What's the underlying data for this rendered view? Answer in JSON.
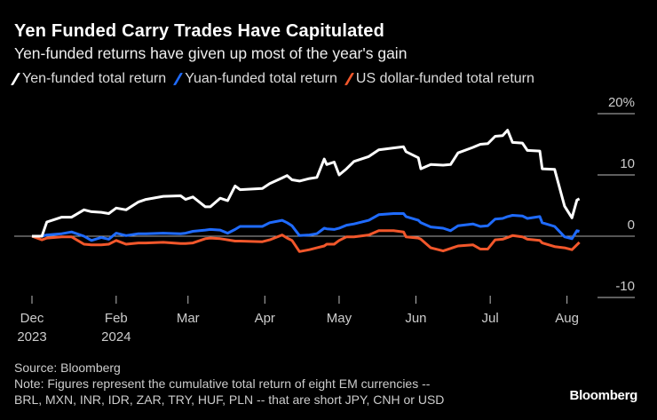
{
  "chart_data": {
    "type": "line",
    "title": "Yen Funded Carry Trades Have Capitulated",
    "subtitle": "Yen-funded returns have given up most of the year's gain",
    "xlabel": "",
    "ylabel": "",
    "ylim": [
      -10,
      20
    ],
    "y_ticks": [
      {
        "value": 20,
        "label": "20%"
      },
      {
        "value": 10,
        "label": "10"
      },
      {
        "value": 0,
        "label": "0"
      },
      {
        "value": -10,
        "label": "-10"
      }
    ],
    "y_axis_side": "right",
    "x_ticks": [
      {
        "date": "2023-12-29",
        "label": "Dec",
        "sublabel": "2023"
      },
      {
        "date": "2024-02-01",
        "label": "Feb",
        "sublabel": "2024"
      },
      {
        "date": "2024-03-01",
        "label": "Mar",
        "sublabel": ""
      },
      {
        "date": "2024-04-01",
        "label": "Apr",
        "sublabel": ""
      },
      {
        "date": "2024-05-01",
        "label": "May",
        "sublabel": ""
      },
      {
        "date": "2024-06-01",
        "label": "Jun",
        "sublabel": ""
      },
      {
        "date": "2024-07-01",
        "label": "Jul",
        "sublabel": ""
      },
      {
        "date": "2024-08-01",
        "label": "Aug",
        "sublabel": ""
      }
    ],
    "grid": false,
    "zero_line": true,
    "legend_position": "top",
    "x": [
      "2023-12-29",
      "2024-01-02",
      "2024-01-04",
      "2024-01-10",
      "2024-01-14",
      "2024-01-19",
      "2024-01-22",
      "2024-01-26",
      "2024-01-29",
      "2024-02-01",
      "2024-02-05",
      "2024-02-10",
      "2024-02-13",
      "2024-02-20",
      "2024-02-27",
      "2024-02-29",
      "2024-03-03",
      "2024-03-08",
      "2024-03-10",
      "2024-03-14",
      "2024-03-17",
      "2024-03-20",
      "2024-03-22",
      "2024-03-31",
      "2024-04-03",
      "2024-04-08",
      "2024-04-10",
      "2024-04-12",
      "2024-04-15",
      "2024-04-19",
      "2024-04-22",
      "2024-04-25",
      "2024-04-26",
      "2024-04-29",
      "2024-05-01",
      "2024-05-04",
      "2024-05-07",
      "2024-05-13",
      "2024-05-17",
      "2024-05-23",
      "2024-05-27",
      "2024-05-28",
      "2024-06-02",
      "2024-06-03",
      "2024-06-07",
      "2024-06-12",
      "2024-06-15",
      "2024-06-18",
      "2024-06-24",
      "2024-06-27",
      "2024-06-30",
      "2024-07-03",
      "2024-07-06",
      "2024-07-08",
      "2024-07-10",
      "2024-07-14",
      "2024-07-16",
      "2024-07-21",
      "2024-07-22",
      "2024-07-27",
      "2024-07-31",
      "2024-08-03",
      "2024-08-05",
      "2024-08-06"
    ],
    "series": [
      {
        "name": "Yen-funded total return",
        "color": "#ffffff",
        "values": [
          0,
          0,
          2.3,
          3.1,
          3.1,
          4.3,
          4.0,
          3.9,
          3.7,
          4.6,
          4.3,
          5.6,
          6.0,
          6.5,
          6.6,
          6.0,
          6.4,
          4.8,
          4.8,
          6.2,
          5.8,
          8.2,
          7.6,
          7.8,
          8.6,
          9.5,
          9.9,
          9.2,
          9.0,
          9.4,
          9.6,
          12.6,
          11.7,
          12.1,
          10.0,
          11.0,
          12.2,
          13.0,
          14.1,
          14.4,
          14.6,
          13.8,
          12.8,
          11.0,
          11.7,
          11.6,
          11.7,
          13.6,
          14.5,
          15.0,
          15.1,
          16.3,
          16.4,
          17.3,
          15.3,
          15.2,
          14.0,
          13.9,
          11.0,
          10.9,
          4.9,
          3.0,
          5.9,
          6.1
        ]
      },
      {
        "name": "Yuan-funded total return",
        "color": "#1f6bff",
        "values": [
          0,
          0,
          0.2,
          0.4,
          0.7,
          0,
          -0.7,
          -0.2,
          -0.5,
          0.5,
          0.1,
          0.4,
          0.4,
          0.5,
          0.4,
          0.5,
          0.8,
          1.0,
          1.1,
          1.0,
          0.5,
          1.1,
          1.6,
          1.6,
          2.2,
          2.6,
          2.2,
          1.7,
          0.1,
          0.2,
          0.4,
          1.3,
          1.2,
          1.1,
          1.3,
          1.8,
          2.0,
          2.6,
          3.5,
          3.7,
          3.7,
          3.2,
          2.6,
          2.2,
          1.5,
          1.3,
          0.9,
          1.7,
          2.0,
          1.6,
          1.7,
          2.8,
          2.9,
          3.2,
          3.4,
          3.3,
          2.9,
          3.2,
          2.2,
          1.6,
          -0.1,
          -0.4,
          0.9,
          0.8
        ]
      },
      {
        "name": "US dollar-funded total return",
        "color": "#f2572b",
        "values": [
          0,
          -0.6,
          -0.3,
          -0.1,
          -0.1,
          -1.3,
          -1.4,
          -1.4,
          -1.3,
          -0.7,
          -1.3,
          -1.1,
          -1.1,
          -1.0,
          -1.2,
          -1.2,
          -1.1,
          -0.4,
          -0.3,
          -0.4,
          -0.6,
          -0.8,
          -0.8,
          -0.9,
          -0.6,
          0.2,
          -0.3,
          -0.7,
          -2.5,
          -2.2,
          -1.9,
          -1.6,
          -1.3,
          -1.3,
          -0.7,
          -0.1,
          -0.1,
          0.2,
          0.9,
          0.9,
          0.7,
          -0.1,
          -0.3,
          -0.5,
          -1.9,
          -2.4,
          -2.0,
          -1.6,
          -1.4,
          -2.1,
          -2.1,
          -0.6,
          -0.5,
          -0.2,
          0.1,
          -0.1,
          -0.5,
          -0.7,
          -1.1,
          -1.7,
          -1.9,
          -2.2,
          -1.4,
          -1.0
        ]
      }
    ]
  },
  "footer": {
    "source": "Source: Bloomberg",
    "note_line1": "Note: Figures represent the cumulative total return of eight EM currencies --",
    "note_line2": "BRL, MXN, INR, IDR, ZAR, TRY, HUF, PLN -- that are short JPY, CNH or USD",
    "logo": "Bloomberg"
  }
}
